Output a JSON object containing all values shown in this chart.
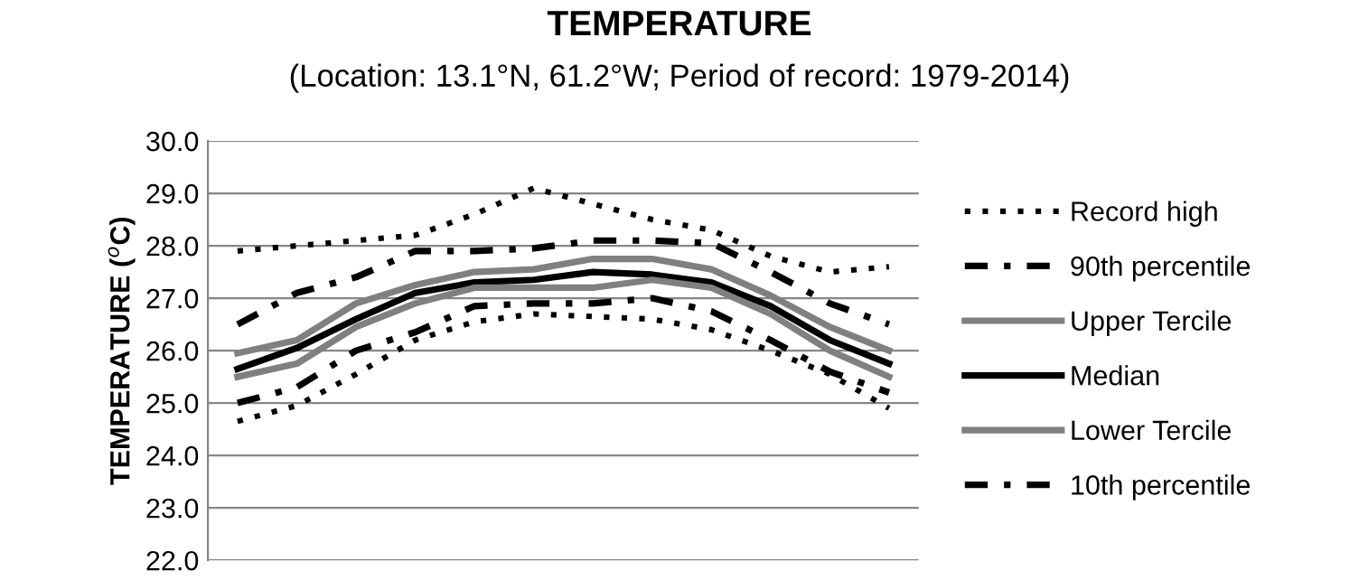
{
  "chart_data": {
    "type": "line",
    "title": "TEMPERATURE",
    "subtitle": "(Location: 13.1°N, 61.2°W; Period of record: 1979-2014)",
    "ylabel": "TEMPERATURE ($^{o}$C)",
    "categories": [
      null,
      null,
      null,
      null,
      null,
      null,
      null,
      null,
      null,
      null,
      null,
      null
    ],
    "series": [
      {
        "name": "Record high",
        "color": "#000000",
        "line_style": "dotted",
        "values": [
          27.9,
          28.0,
          28.1,
          28.2,
          28.6,
          29.1,
          28.8,
          28.5,
          28.3,
          27.8,
          27.5,
          27.6
        ]
      },
      {
        "name": "90th percentile",
        "color": "#000000",
        "line_style": "dashdot",
        "values": [
          26.5,
          27.1,
          27.4,
          27.9,
          27.9,
          27.95,
          28.1,
          28.1,
          28.05,
          27.5,
          26.9,
          26.5
        ]
      },
      {
        "name": "Upper Tercile",
        "color": "#808080",
        "line_style": "solid",
        "values": [
          25.95,
          26.2,
          26.9,
          27.25,
          27.5,
          27.55,
          27.75,
          27.75,
          27.55,
          27.05,
          26.45,
          26.0
        ]
      },
      {
        "name": "Median",
        "color": "#000000",
        "line_style": "solid",
        "values": [
          25.65,
          26.05,
          26.6,
          27.1,
          27.3,
          27.35,
          27.5,
          27.45,
          27.3,
          26.85,
          26.2,
          25.75
        ]
      },
      {
        "name": "Lower Tercile",
        "color": "#808080",
        "line_style": "solid",
        "values": [
          25.5,
          25.75,
          26.45,
          26.9,
          27.2,
          27.2,
          27.2,
          27.35,
          27.2,
          26.7,
          26.0,
          25.5
        ]
      },
      {
        "name": "10th percentile",
        "color": "#000000",
        "line_style": "dashdot",
        "values": [
          25.0,
          25.3,
          26.0,
          26.35,
          26.85,
          26.9,
          26.9,
          27.0,
          26.75,
          26.2,
          25.6,
          25.2
        ]
      },
      {
        "color": "#000000",
        "line_style": "dotted",
        "values": [
          24.65,
          24.95,
          25.55,
          26.2,
          26.55,
          26.7,
          26.65,
          26.6,
          26.4,
          26.0,
          25.55,
          24.9
        ]
      }
    ],
    "ylim": [
      22,
      30
    ],
    "yticks": [
      {
        "value": 22,
        "label": "22.0"
      },
      {
        "value": 23,
        "label": "23.0"
      },
      {
        "value": 24,
        "label": "24.0"
      },
      {
        "value": 25,
        "label": "25.0"
      },
      {
        "value": 26,
        "label": "26.0"
      },
      {
        "value": 27,
        "label": "27.0"
      },
      {
        "value": 28,
        "label": "28.0"
      },
      {
        "value": 29,
        "label": "29.0"
      },
      {
        "value": 30,
        "label": "30.0"
      }
    ],
    "grid": "y",
    "legend": "right",
    "marker": "none"
  }
}
